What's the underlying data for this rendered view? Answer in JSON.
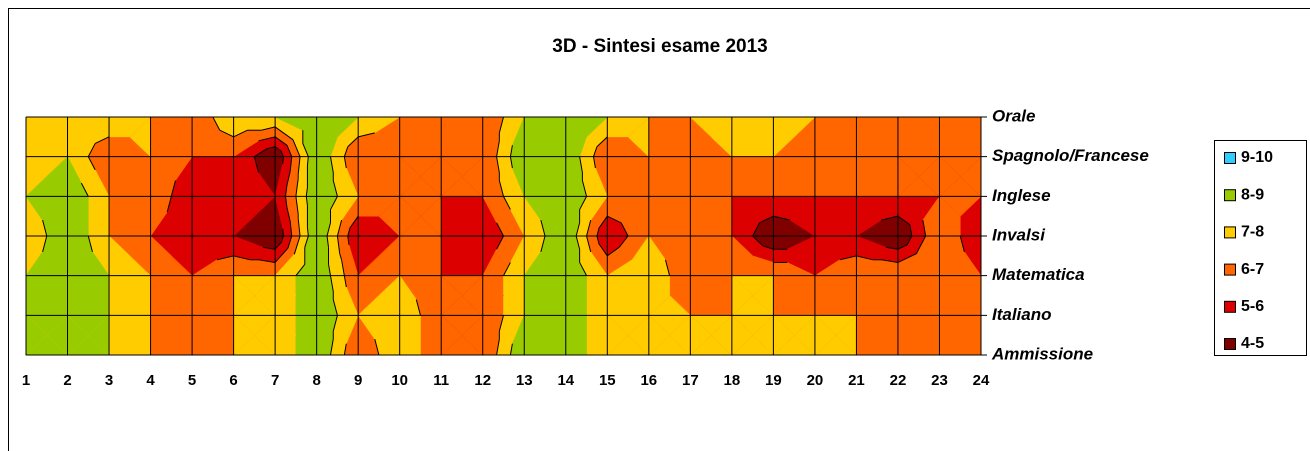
{
  "chart_data": {
    "type": "contour",
    "title": "3D - Sintesi esame 2013",
    "x": [
      1,
      2,
      3,
      4,
      5,
      6,
      7,
      8,
      9,
      10,
      11,
      12,
      13,
      14,
      15,
      16,
      17,
      18,
      19,
      20,
      21,
      22,
      23,
      24
    ],
    "series": [
      {
        "name": "Ammissione",
        "values": [
          8,
          8,
          8,
          7,
          6,
          7,
          7,
          9,
          6,
          8,
          6,
          6,
          9,
          9,
          7,
          7,
          7,
          7,
          7,
          7,
          7,
          7,
          7,
          6
        ]
      },
      {
        "name": "Italiano",
        "values": [
          8,
          8,
          8,
          7,
          6,
          7,
          7,
          9,
          7,
          8,
          6,
          6,
          8,
          9,
          7,
          7,
          7,
          7,
          7,
          7,
          7,
          6,
          6,
          6
        ]
      },
      {
        "name": "Matematica",
        "values": [
          8,
          9,
          8,
          7,
          6,
          7,
          7,
          9,
          6,
          7,
          6,
          6,
          8,
          9,
          7,
          8,
          6,
          7,
          7,
          6,
          7,
          7,
          7,
          6
        ]
      },
      {
        "name": "Invalsi",
        "values": [
          7,
          9,
          7,
          6,
          5,
          5,
          4,
          9,
          5,
          6,
          6,
          5,
          7,
          9,
          5,
          7,
          6,
          6,
          4,
          5,
          5,
          4,
          7,
          5
        ]
      },
      {
        "name": "Inglese",
        "values": [
          8,
          9,
          7,
          7,
          5,
          6,
          5,
          9,
          7,
          6,
          6,
          6,
          8,
          9,
          7,
          7,
          7,
          6,
          6,
          6,
          6,
          6,
          6,
          6
        ]
      },
      {
        "name": "Spagnolo/Francese",
        "values": [
          7,
          8,
          6,
          7,
          6,
          6,
          4,
          9,
          6,
          6,
          6,
          6,
          9,
          9,
          6,
          7,
          6,
          7,
          7,
          6,
          7,
          6,
          6,
          6
        ]
      },
      {
        "name": "Orale",
        "values": [
          8,
          8,
          8,
          7,
          6,
          8,
          8,
          9,
          8,
          7,
          7,
          6,
          8,
          9,
          8,
          7,
          7,
          8,
          8,
          7,
          7,
          7,
          7,
          6
        ]
      }
    ],
    "bands": [
      {
        "label": "9-10",
        "from": 9,
        "to": 10,
        "color": "#33ccff"
      },
      {
        "label": "8-9",
        "from": 8,
        "to": 9,
        "color": "#99cc00"
      },
      {
        "label": "7-8",
        "from": 7,
        "to": 8,
        "color": "#ffcc00"
      },
      {
        "label": "6-7",
        "from": 6,
        "to": 7,
        "color": "#ff6600"
      },
      {
        "label": "5-6",
        "from": 5,
        "to": 6,
        "color": "#dd0000"
      },
      {
        "label": "4-5",
        "from": 4,
        "to": 5,
        "color": "#800000"
      }
    ]
  }
}
